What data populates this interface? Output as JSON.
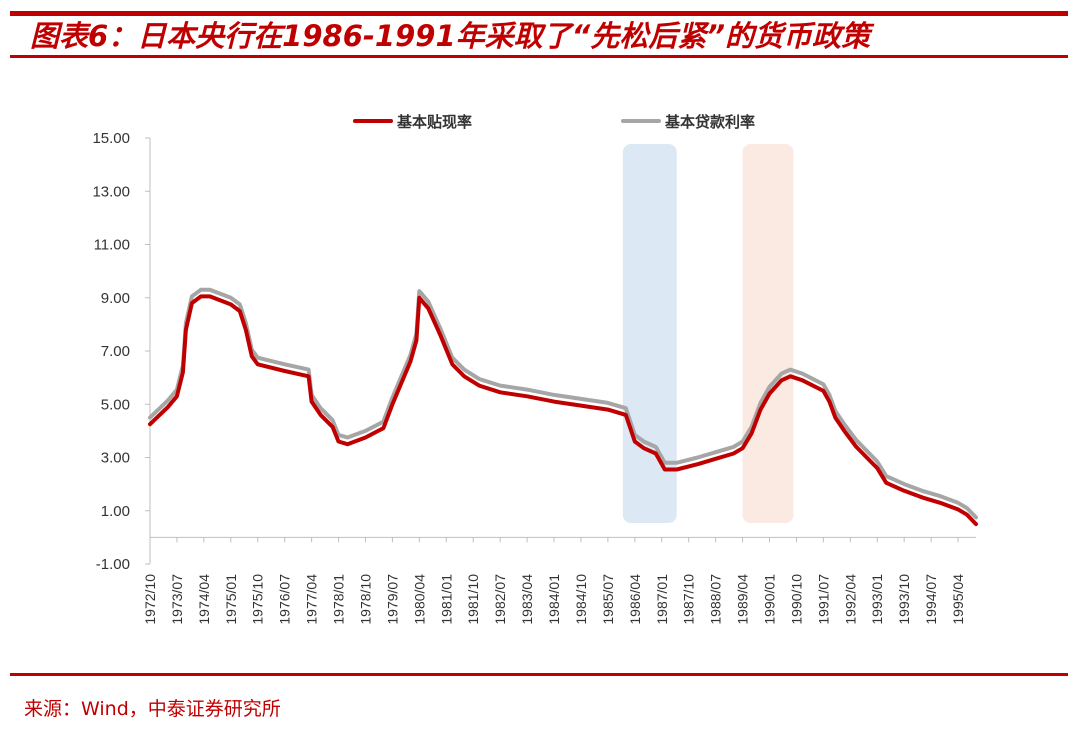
{
  "header": {
    "title": "图表6：日本央行在1986-1991年采取了“先松后紧”的货币政策"
  },
  "footer": {
    "source": "来源：Wind，中泰证券研究所"
  },
  "chart_data": {
    "type": "line",
    "title": "图表6：日本央行在1986-1991年采取了“先松后紧”的货币政策",
    "xlabel": "",
    "ylabel": "",
    "ylim": [
      -1,
      15
    ],
    "yticks": [
      "15.00",
      "13.00",
      "11.00",
      "9.00",
      "7.00",
      "5.00",
      "3.00",
      "1.00",
      "-1.00"
    ],
    "xticks": [
      "1972/10",
      "1973/07",
      "1974/04",
      "1975/01",
      "1975/10",
      "1976/07",
      "1977/04",
      "1978/01",
      "1978/10",
      "1979/07",
      "1980/04",
      "1981/01",
      "1981/10",
      "1982/07",
      "1983/04",
      "1984/01",
      "1984/10",
      "1985/07",
      "1986/04",
      "1987/01",
      "1987/10",
      "1988/07",
      "1989/04",
      "1990/01",
      "1990/10",
      "1991/07",
      "1992/04",
      "1993/01",
      "1993/10",
      "1994/07",
      "1995/04"
    ],
    "legend_position": "top",
    "grid": false,
    "highlight_bands": [
      {
        "from": "1985/12",
        "to": "1987/06",
        "color": "#dce9f5"
      },
      {
        "from": "1989/04",
        "to": "1990/09",
        "color": "#fbeae2"
      }
    ],
    "series": [
      {
        "name": "基本贴现率",
        "color": "#c00000",
        "points": [
          [
            "1972/10",
            4.25
          ],
          [
            "1973/04",
            4.9
          ],
          [
            "1973/07",
            5.3
          ],
          [
            "1973/09",
            6.2
          ],
          [
            "1973/10",
            7.8
          ],
          [
            "1973/12",
            8.8
          ],
          [
            "1974/03",
            9.05
          ],
          [
            "1974/06",
            9.05
          ],
          [
            "1975/01",
            8.75
          ],
          [
            "1975/04",
            8.5
          ],
          [
            "1975/06",
            7.8
          ],
          [
            "1975/08",
            6.8
          ],
          [
            "1975/10",
            6.5
          ],
          [
            "1976/07",
            6.25
          ],
          [
            "1977/03",
            6.05
          ],
          [
            "1977/04",
            5.1
          ],
          [
            "1977/07",
            4.6
          ],
          [
            "1977/11",
            4.15
          ],
          [
            "1978/01",
            3.6
          ],
          [
            "1978/04",
            3.5
          ],
          [
            "1978/10",
            3.75
          ],
          [
            "1979/04",
            4.1
          ],
          [
            "1979/07",
            5.0
          ],
          [
            "1980/01",
            6.6
          ],
          [
            "1980/03",
            7.4
          ],
          [
            "1980/04",
            9.0
          ],
          [
            "1980/07",
            8.6
          ],
          [
            "1980/11",
            7.6
          ],
          [
            "1981/03",
            6.5
          ],
          [
            "1981/07",
            6.05
          ],
          [
            "1981/12",
            5.7
          ],
          [
            "1982/07",
            5.45
          ],
          [
            "1983/04",
            5.3
          ],
          [
            "1984/01",
            5.1
          ],
          [
            "1984/10",
            4.95
          ],
          [
            "1985/07",
            4.8
          ],
          [
            "1986/01",
            4.6
          ],
          [
            "1986/04",
            3.6
          ],
          [
            "1986/07",
            3.35
          ],
          [
            "1986/11",
            3.15
          ],
          [
            "1987/02",
            2.55
          ],
          [
            "1987/06",
            2.55
          ],
          [
            "1988/01",
            2.75
          ],
          [
            "1988/07",
            2.95
          ],
          [
            "1989/01",
            3.15
          ],
          [
            "1989/04",
            3.35
          ],
          [
            "1989/07",
            3.9
          ],
          [
            "1989/10",
            4.8
          ],
          [
            "1990/01",
            5.4
          ],
          [
            "1990/05",
            5.9
          ],
          [
            "1990/08",
            6.05
          ],
          [
            "1990/12",
            5.9
          ],
          [
            "1991/07",
            5.5
          ],
          [
            "1991/09",
            5.1
          ],
          [
            "1991/11",
            4.5
          ],
          [
            "1992/02",
            4.0
          ],
          [
            "1992/06",
            3.4
          ],
          [
            "1993/01",
            2.6
          ],
          [
            "1993/04",
            2.05
          ],
          [
            "1993/10",
            1.75
          ],
          [
            "1994/04",
            1.5
          ],
          [
            "1994/10",
            1.3
          ],
          [
            "1995/04",
            1.05
          ],
          [
            "1995/07",
            0.85
          ],
          [
            "1995/10",
            0.5
          ]
        ]
      },
      {
        "name": "基本贷款利率",
        "color": "#a6a6a6",
        "points": [
          [
            "1972/10",
            4.5
          ],
          [
            "1973/04",
            5.15
          ],
          [
            "1973/07",
            5.55
          ],
          [
            "1973/09",
            6.45
          ],
          [
            "1973/10",
            8.05
          ],
          [
            "1973/12",
            9.05
          ],
          [
            "1974/03",
            9.3
          ],
          [
            "1974/06",
            9.3
          ],
          [
            "1975/01",
            9.0
          ],
          [
            "1975/04",
            8.75
          ],
          [
            "1975/06",
            8.05
          ],
          [
            "1975/08",
            7.05
          ],
          [
            "1975/10",
            6.75
          ],
          [
            "1976/07",
            6.5
          ],
          [
            "1977/03",
            6.3
          ],
          [
            "1977/04",
            5.35
          ],
          [
            "1977/07",
            4.85
          ],
          [
            "1977/11",
            4.4
          ],
          [
            "1978/01",
            3.85
          ],
          [
            "1978/04",
            3.75
          ],
          [
            "1978/10",
            4.0
          ],
          [
            "1979/04",
            4.35
          ],
          [
            "1979/07",
            5.25
          ],
          [
            "1980/01",
            6.85
          ],
          [
            "1980/03",
            7.65
          ],
          [
            "1980/04",
            9.25
          ],
          [
            "1980/07",
            8.85
          ],
          [
            "1980/11",
            7.85
          ],
          [
            "1981/03",
            6.75
          ],
          [
            "1981/07",
            6.3
          ],
          [
            "1981/12",
            5.95
          ],
          [
            "1982/07",
            5.7
          ],
          [
            "1983/04",
            5.55
          ],
          [
            "1984/01",
            5.35
          ],
          [
            "1984/10",
            5.2
          ],
          [
            "1985/07",
            5.05
          ],
          [
            "1986/01",
            4.85
          ],
          [
            "1986/04",
            3.85
          ],
          [
            "1986/07",
            3.6
          ],
          [
            "1986/11",
            3.4
          ],
          [
            "1987/02",
            2.8
          ],
          [
            "1987/06",
            2.8
          ],
          [
            "1988/01",
            3.0
          ],
          [
            "1988/07",
            3.2
          ],
          [
            "1989/01",
            3.4
          ],
          [
            "1989/04",
            3.6
          ],
          [
            "1989/07",
            4.15
          ],
          [
            "1989/10",
            5.05
          ],
          [
            "1990/01",
            5.65
          ],
          [
            "1990/05",
            6.15
          ],
          [
            "1990/08",
            6.3
          ],
          [
            "1990/12",
            6.15
          ],
          [
            "1991/07",
            5.75
          ],
          [
            "1991/09",
            5.35
          ],
          [
            "1991/11",
            4.75
          ],
          [
            "1992/02",
            4.25
          ],
          [
            "1992/06",
            3.65
          ],
          [
            "1993/01",
            2.85
          ],
          [
            "1993/04",
            2.3
          ],
          [
            "1993/10",
            2.0
          ],
          [
            "1994/04",
            1.75
          ],
          [
            "1994/10",
            1.55
          ],
          [
            "1995/04",
            1.3
          ],
          [
            "1995/07",
            1.1
          ],
          [
            "1995/10",
            0.75
          ]
        ]
      }
    ]
  }
}
